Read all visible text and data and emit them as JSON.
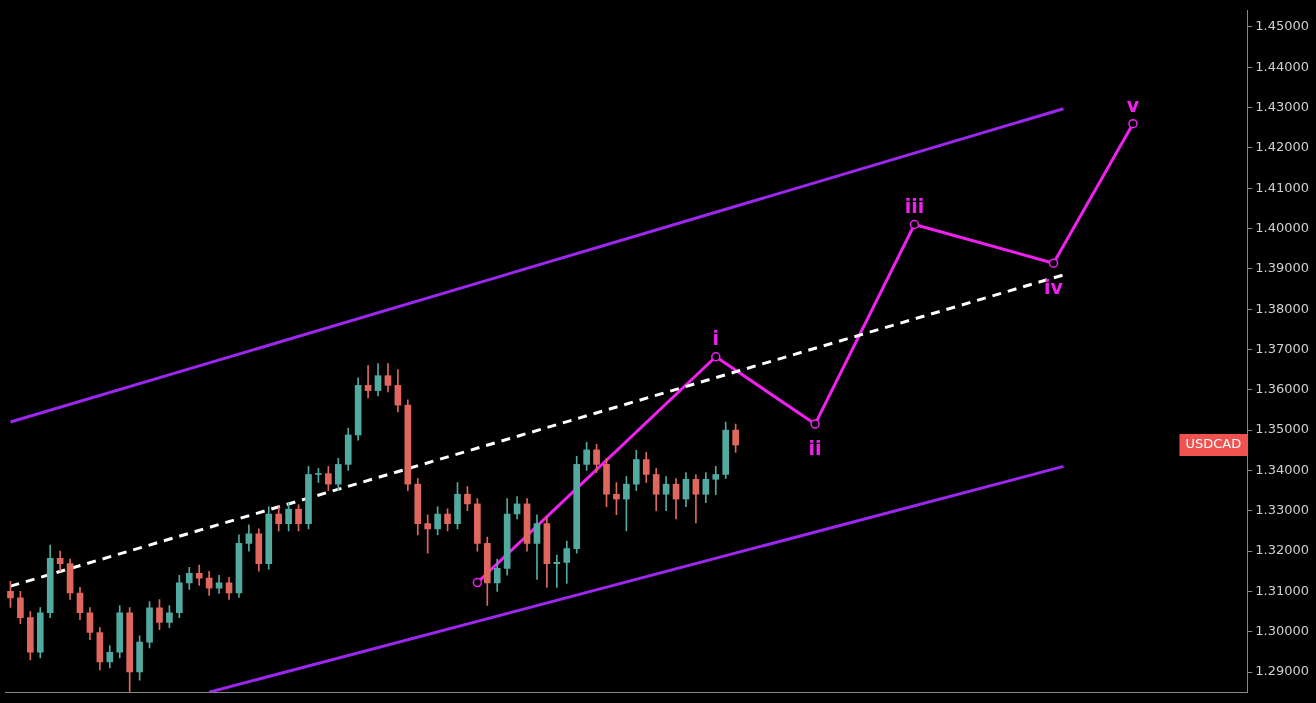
{
  "chart_data": {
    "type": "candlestick",
    "categories": [
      null,
      null,
      null,
      null,
      null,
      null,
      null,
      null,
      null,
      null,
      null,
      null,
      null,
      null,
      null,
      null,
      null,
      null,
      null,
      null,
      null,
      null,
      null,
      null,
      null,
      null,
      null,
      null,
      null,
      null,
      null,
      null,
      null,
      null,
      null,
      null,
      null,
      null,
      null,
      null,
      null,
      null,
      null,
      null,
      null,
      null,
      null,
      null,
      null,
      null,
      null,
      null,
      null,
      null,
      null,
      null,
      null,
      null,
      null,
      null,
      null,
      null,
      null,
      null,
      null,
      null,
      null,
      null,
      null,
      null,
      null,
      null,
      null,
      null,
      null,
      null,
      null,
      null,
      null,
      null,
      null,
      null,
      null,
      null,
      null,
      null,
      null,
      null,
      null,
      null,
      null,
      null,
      null,
      null,
      null,
      null,
      null,
      null,
      null,
      null,
      null,
      null,
      null,
      null,
      null,
      null,
      null,
      null,
      null,
      null,
      null,
      null,
      null,
      null,
      null,
      null,
      null,
      null,
      null,
      null,
      null,
      null,
      null,
      null,
      null
    ],
    "ohlc": [
      [
        1.31,
        1.3125,
        1.306,
        1.3084
      ],
      [
        1.3084,
        1.31,
        1.302,
        1.3035
      ],
      [
        1.3035,
        1.305,
        1.293,
        1.2949
      ],
      [
        1.2949,
        1.306,
        1.2935,
        1.3047
      ],
      [
        1.3047,
        1.3215,
        1.3035,
        1.3182
      ],
      [
        1.3182,
        1.32,
        1.315,
        1.3169
      ],
      [
        1.3169,
        1.318,
        1.308,
        1.3096
      ],
      [
        1.3096,
        1.311,
        1.303,
        1.3047
      ],
      [
        1.3047,
        1.306,
        1.298,
        1.2998
      ],
      [
        1.2998,
        1.301,
        1.2905,
        1.2925
      ],
      [
        1.2925,
        1.2965,
        1.291,
        1.2949
      ],
      [
        1.2949,
        1.3065,
        1.2935,
        1.3047
      ],
      [
        1.3047,
        1.306,
        1.2852,
        1.29
      ],
      [
        1.29,
        1.299,
        1.288,
        1.2974
      ],
      [
        1.2974,
        1.3075,
        1.296,
        1.3059
      ],
      [
        1.3059,
        1.308,
        1.3005,
        1.3023
      ],
      [
        1.3023,
        1.3065,
        1.301,
        1.3047
      ],
      [
        1.3047,
        1.314,
        1.3035,
        1.3121
      ],
      [
        1.3121,
        1.316,
        1.3105,
        1.3145
      ],
      [
        1.3145,
        1.3165,
        1.3115,
        1.3133
      ],
      [
        1.3133,
        1.315,
        1.309,
        1.3108
      ],
      [
        1.3108,
        1.314,
        1.3095,
        1.3121
      ],
      [
        1.3121,
        1.3135,
        1.308,
        1.3096
      ],
      [
        1.3096,
        1.324,
        1.3085,
        1.3219
      ],
      [
        1.3219,
        1.3265,
        1.32,
        1.3243
      ],
      [
        1.3243,
        1.3255,
        1.315,
        1.3169
      ],
      [
        1.3169,
        1.331,
        1.3155,
        1.3292
      ],
      [
        1.3292,
        1.331,
        1.325,
        1.3268
      ],
      [
        1.3268,
        1.332,
        1.325,
        1.3304
      ],
      [
        1.3304,
        1.3315,
        1.325,
        1.3268
      ],
      [
        1.3268,
        1.341,
        1.3255,
        1.339
      ],
      [
        1.339,
        1.3405,
        1.337,
        1.3392
      ],
      [
        1.3392,
        1.341,
        1.335,
        1.3366
      ],
      [
        1.3366,
        1.343,
        1.335,
        1.3415
      ],
      [
        1.3415,
        1.3505,
        1.34,
        1.3488
      ],
      [
        1.3488,
        1.363,
        1.3475,
        1.3611
      ],
      [
        1.3611,
        1.366,
        1.358,
        1.3598
      ],
      [
        1.3598,
        1.3665,
        1.3585,
        1.3635
      ],
      [
        1.3635,
        1.3665,
        1.3595,
        1.3611
      ],
      [
        1.3611,
        1.365,
        1.3545,
        1.3562
      ],
      [
        1.3562,
        1.3575,
        1.335,
        1.3366
      ],
      [
        1.3366,
        1.338,
        1.324,
        1.3268
      ],
      [
        1.3268,
        1.329,
        1.3195,
        1.3255
      ],
      [
        1.3255,
        1.331,
        1.324,
        1.3292
      ],
      [
        1.3292,
        1.3305,
        1.325,
        1.3268
      ],
      [
        1.3268,
        1.337,
        1.3255,
        1.3341
      ],
      [
        1.3341,
        1.336,
        1.33,
        1.3317
      ],
      [
        1.3317,
        1.333,
        1.32,
        1.3219
      ],
      [
        1.3219,
        1.3235,
        1.3065,
        1.3121
      ],
      [
        1.3121,
        1.318,
        1.31,
        1.3157
      ],
      [
        1.3157,
        1.333,
        1.314,
        1.3292
      ],
      [
        1.3292,
        1.3335,
        1.328,
        1.3317
      ],
      [
        1.3317,
        1.333,
        1.32,
        1.3219
      ],
      [
        1.3219,
        1.329,
        1.313,
        1.3268
      ],
      [
        1.3268,
        1.3285,
        1.311,
        1.3169
      ],
      [
        1.3169,
        1.319,
        1.311,
        1.3172
      ],
      [
        1.3172,
        1.3225,
        1.312,
        1.3206
      ],
      [
        1.3206,
        1.3435,
        1.3195,
        1.3415
      ],
      [
        1.3415,
        1.347,
        1.34,
        1.3451
      ],
      [
        1.3451,
        1.3465,
        1.3395,
        1.3415
      ],
      [
        1.3415,
        1.343,
        1.331,
        1.3341
      ],
      [
        1.3341,
        1.337,
        1.329,
        1.3329
      ],
      [
        1.3329,
        1.3385,
        1.325,
        1.3366
      ],
      [
        1.3366,
        1.345,
        1.335,
        1.3427
      ],
      [
        1.3427,
        1.3445,
        1.337,
        1.339
      ],
      [
        1.339,
        1.3405,
        1.33,
        1.3341
      ],
      [
        1.3341,
        1.3385,
        1.33,
        1.3366
      ],
      [
        1.3366,
        1.338,
        1.328,
        1.3329
      ],
      [
        1.3329,
        1.3395,
        1.331,
        1.3378
      ],
      [
        1.3378,
        1.339,
        1.327,
        1.3341
      ],
      [
        1.3341,
        1.3395,
        1.332,
        1.3378
      ],
      [
        1.3378,
        1.341,
        1.334,
        1.339
      ],
      [
        1.339,
        1.352,
        1.338,
        1.35
      ],
      [
        1.35,
        1.3515,
        1.3445,
        1.3463
      ],
      null,
      null,
      null,
      null,
      null,
      null,
      null,
      null,
      null,
      null,
      null,
      null,
      null,
      null,
      null,
      null,
      null,
      null,
      null,
      null,
      null,
      null,
      null,
      null,
      null,
      null,
      null,
      null,
      null,
      null,
      null,
      null,
      null,
      null,
      null,
      null,
      null,
      null,
      null,
      null,
      null,
      null,
      null,
      null,
      null,
      null,
      null,
      null,
      null,
      null,
      null
    ],
    "series": [
      {
        "type": "line",
        "color": "#9c27f0",
        "values": [
          1.352,
          null,
          null,
          null,
          null,
          null,
          null,
          null,
          null,
          null,
          null,
          null,
          null,
          null,
          null,
          null,
          null,
          null,
          null,
          null,
          null,
          null,
          null,
          null,
          null,
          null,
          null,
          null,
          null,
          null,
          null,
          null,
          null,
          null,
          null,
          null,
          null,
          null,
          null,
          null,
          null,
          null,
          null,
          null,
          null,
          null,
          null,
          null,
          null,
          null,
          null,
          null,
          null,
          null,
          null,
          null,
          null,
          null,
          null,
          null,
          null,
          null,
          null,
          null,
          null,
          null,
          null,
          null,
          null,
          null,
          null,
          null,
          null,
          null,
          null,
          null,
          null,
          null,
          null,
          null,
          null,
          null,
          null,
          null,
          null,
          null,
          null,
          null,
          null,
          null,
          null,
          null,
          null,
          null,
          null,
          null,
          null,
          null,
          null,
          null,
          null,
          null,
          null,
          null,
          null,
          null,
          1.4297,
          null,
          null,
          null,
          null,
          null,
          null,
          null,
          null,
          null,
          null,
          null,
          null,
          null,
          null,
          null,
          null,
          null,
          null
        ]
      },
      {
        "type": "line",
        "color": "#9c27f0",
        "values": [
          null,
          null,
          null,
          null,
          null,
          null,
          null,
          null,
          null,
          null,
          null,
          null,
          null,
          null,
          null,
          null,
          null,
          null,
          null,
          null,
          1.285,
          null,
          null,
          null,
          null,
          null,
          null,
          null,
          null,
          null,
          null,
          null,
          null,
          null,
          null,
          null,
          null,
          null,
          null,
          null,
          null,
          null,
          null,
          null,
          null,
          null,
          null,
          null,
          null,
          null,
          null,
          null,
          null,
          null,
          null,
          null,
          null,
          null,
          null,
          null,
          null,
          null,
          null,
          null,
          null,
          null,
          null,
          null,
          null,
          null,
          null,
          null,
          null,
          null,
          null,
          null,
          null,
          null,
          null,
          null,
          null,
          null,
          null,
          null,
          null,
          null,
          null,
          null,
          null,
          null,
          null,
          null,
          null,
          null,
          null,
          null,
          null,
          null,
          null,
          null,
          null,
          null,
          null,
          null,
          null,
          null,
          1.341,
          null,
          null,
          null,
          null,
          null,
          null,
          null,
          null,
          null,
          null,
          null,
          null,
          null,
          null,
          null,
          null,
          null,
          null
        ]
      },
      {
        "type": "line",
        "color": "#ffffff",
        "line_style": "dashed",
        "values": [
          1.3113,
          null,
          null,
          null,
          null,
          null,
          null,
          null,
          null,
          null,
          null,
          null,
          null,
          null,
          null,
          null,
          null,
          null,
          null,
          null,
          null,
          null,
          null,
          null,
          null,
          null,
          null,
          null,
          null,
          null,
          null,
          null,
          null,
          null,
          null,
          null,
          null,
          null,
          null,
          null,
          null,
          null,
          null,
          null,
          null,
          null,
          null,
          null,
          null,
          null,
          null,
          null,
          null,
          null,
          null,
          null,
          null,
          null,
          null,
          null,
          null,
          null,
          null,
          null,
          null,
          null,
          null,
          null,
          null,
          null,
          null,
          null,
          null,
          null,
          null,
          null,
          null,
          null,
          null,
          null,
          null,
          null,
          null,
          null,
          null,
          null,
          null,
          null,
          null,
          null,
          null,
          null,
          null,
          null,
          null,
          null,
          null,
          null,
          null,
          null,
          null,
          null,
          null,
          null,
          null,
          null,
          1.3885,
          null,
          null,
          null,
          null,
          null,
          null,
          null,
          null,
          null,
          null,
          null,
          null,
          null,
          null,
          null,
          null,
          null,
          null
        ]
      },
      {
        "type": "line",
        "color": "#f020f0",
        "marker": "circle",
        "values": [
          null,
          null,
          null,
          null,
          null,
          null,
          null,
          null,
          null,
          null,
          null,
          null,
          null,
          null,
          null,
          null,
          null,
          null,
          null,
          null,
          null,
          null,
          null,
          null,
          null,
          null,
          null,
          null,
          null,
          null,
          null,
          null,
          null,
          null,
          null,
          null,
          null,
          null,
          null,
          null,
          null,
          null,
          null,
          null,
          null,
          null,
          null,
          1.3122,
          null,
          null,
          null,
          null,
          null,
          null,
          null,
          null,
          null,
          null,
          null,
          null,
          null,
          null,
          null,
          null,
          null,
          null,
          null,
          null,
          null,
          null,
          null,
          1.3682,
          null,
          null,
          null,
          null,
          null,
          null,
          null,
          null,
          null,
          1.3515,
          null,
          null,
          null,
          null,
          null,
          null,
          null,
          null,
          null,
          1.401,
          null,
          null,
          null,
          null,
          null,
          null,
          null,
          null,
          null,
          null,
          null,
          null,
          null,
          1.3914,
          null,
          null,
          null,
          null,
          null,
          null,
          null,
          1.426,
          null,
          null,
          null,
          null,
          null,
          null,
          null,
          null,
          null,
          null,
          null
        ]
      }
    ],
    "annotations": [
      {
        "text": "i",
        "y": 1.3682
      },
      {
        "text": "ii",
        "y": 1.3515
      },
      {
        "text": "iii",
        "y": 1.401
      },
      {
        "text": "iv",
        "y": 1.3914
      },
      {
        "text": "v",
        "y": 1.426
      },
      "USDCAD"
    ],
    "ylim": [
      1.285,
      1.454
    ],
    "yticks": [
      {
        "value": 1.29,
        "label": "1.29000"
      },
      {
        "value": 1.3,
        "label": "1.30000"
      },
      {
        "value": 1.31,
        "label": "1.31000"
      },
      {
        "value": 1.32,
        "label": "1.32000"
      },
      {
        "value": 1.33,
        "label": "1.33000"
      },
      {
        "value": 1.34,
        "label": "1.34000"
      },
      {
        "value": 1.35,
        "label": "1.35000"
      },
      {
        "value": 1.36,
        "label": "1.36000"
      },
      {
        "value": 1.37,
        "label": "1.37000"
      },
      {
        "value": 1.38,
        "label": "1.38000"
      },
      {
        "value": 1.39,
        "label": "1.39000"
      },
      {
        "value": 1.4,
        "label": "1.40000"
      },
      {
        "value": 1.41,
        "label": "1.41000"
      },
      {
        "value": 1.42,
        "label": "1.42000"
      },
      {
        "value": 1.43,
        "label": "1.43000"
      },
      {
        "value": 1.44,
        "label": "1.44000"
      },
      {
        "value": 1.45,
        "label": "1.45000"
      }
    ],
    "tick_labels": "y",
    "grid": false,
    "legend": false
  }
}
